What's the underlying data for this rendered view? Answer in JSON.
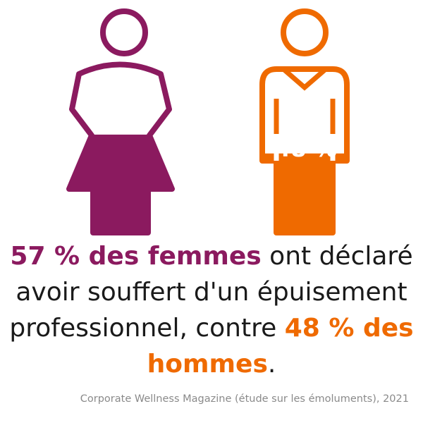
{
  "colors": {
    "women": "#8b1a5f",
    "men": "#ef6a00",
    "text": "#1a1a1a",
    "source": "#8a8a8a"
  },
  "chart_data": {
    "type": "bar",
    "categories": [
      "femmes",
      "hommes"
    ],
    "values": [
      57,
      48
    ],
    "ylim": [
      0,
      100
    ],
    "labels": [
      "57 %",
      "48 %"
    ],
    "icons": [
      "woman-figure-icon",
      "man-figure-icon"
    ]
  },
  "caption": {
    "women_part": "57 % des femmes",
    "middle_part": " ont déclaré avoir souffert d'un épuisement professionnel, contre ",
    "men_part": "48 % des hommes",
    "end": "."
  },
  "source": "Corporate Wellness Magazine (étude sur les émoluments), 2021"
}
